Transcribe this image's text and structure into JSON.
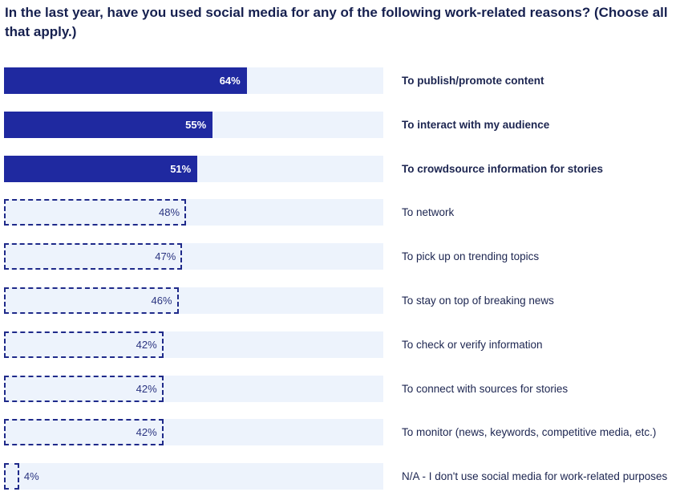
{
  "chart_data": {
    "type": "bar",
    "orientation": "horizontal",
    "title": "In the last year, have you used social media for any of the following work-related reasons? (Choose all that apply.)",
    "xlim": [
      0,
      100
    ],
    "grid": false,
    "colors": {
      "highlight": "#1f29a0",
      "track": "#edf3fc",
      "dashed_border": "#1f2a8a"
    },
    "categories": [
      "To publish/promote content",
      "To interact with my audience",
      "To crowdsource information for stories",
      "To network",
      "To pick up on trending topics",
      "To stay on top of breaking news",
      "To check or verify information",
      "To connect with sources for stories",
      "To monitor (news, keywords, competitive media, etc.)",
      "N/A - I don't use social media for work-related purposes"
    ],
    "values": [
      64,
      55,
      51,
      48,
      47,
      46,
      42,
      42,
      42,
      4
    ],
    "value_labels": [
      "64%",
      "55%",
      "51%",
      "48%",
      "47%",
      "46%",
      "42%",
      "42%",
      "42%",
      "4%"
    ],
    "highlighted": [
      true,
      true,
      true,
      false,
      false,
      false,
      false,
      false,
      false,
      false
    ]
  }
}
